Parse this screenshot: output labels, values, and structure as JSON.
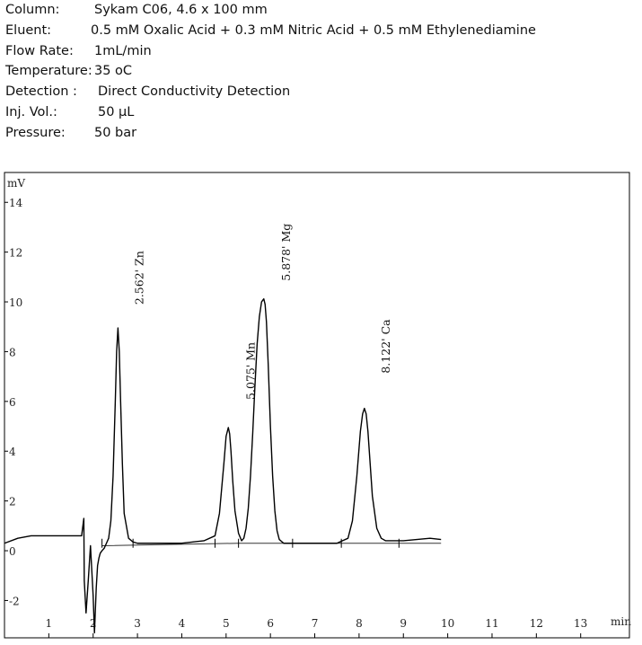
{
  "method": [
    {
      "label": "Column:",
      "value": "Sykam C06, 4.6 x 100 mm"
    },
    {
      "label": "Eluent:",
      "value": "0.5 mM Oxalic Acid + 0.3 mM Nitric Acid + 0.5 mM Ethylenediamine"
    },
    {
      "label": "Flow Rate:",
      "value": "1mL/min"
    },
    {
      "label": "Temperature:",
      "value": "35 oC"
    },
    {
      "label": "Detection :",
      "value": "Direct Conductivity Detection"
    },
    {
      "label": "Inj. Vol.:",
      "value": "50 µL"
    },
    {
      "label": "Pressure:",
      "value": "50 bar"
    }
  ],
  "chart_data": {
    "type": "line",
    "ylabel": "mV",
    "xlabel": "min",
    "xlim": [
      0,
      14.1
    ],
    "ylim": [
      -3.5,
      15.2
    ],
    "x_ticks": [
      1,
      2,
      3,
      4,
      5,
      6,
      7,
      8,
      9,
      10,
      11,
      12,
      13
    ],
    "y_ticks": [
      -2,
      0,
      2,
      4,
      6,
      8,
      10,
      12,
      14
    ],
    "y_tick_labels": [
      "-2",
      "0",
      "2",
      "4",
      "6",
      "8",
      "10",
      "12",
      "14"
    ],
    "series": [
      {
        "x": [
          0.0,
          0.3,
          0.6,
          0.9,
          1.2,
          1.5,
          1.74,
          1.79,
          1.8,
          1.84,
          1.89,
          1.94,
          2.0,
          2.03,
          2.07,
          2.1,
          2.13,
          2.16,
          2.2,
          2.25,
          2.3,
          2.35,
          2.4,
          2.45,
          2.5,
          2.53,
          2.56,
          2.59,
          2.62,
          2.66,
          2.7,
          2.8,
          2.9,
          3.0,
          3.5,
          4.0,
          4.5,
          4.75,
          4.85,
          4.95,
          5.0,
          5.05,
          5.08,
          5.11,
          5.15,
          5.2,
          5.28,
          5.35,
          5.4,
          5.45,
          5.5,
          5.55,
          5.6,
          5.65,
          5.7,
          5.75,
          5.8,
          5.85,
          5.88,
          5.91,
          5.95,
          6.0,
          6.05,
          6.1,
          6.15,
          6.2,
          6.3,
          6.4,
          6.6,
          7.0,
          7.5,
          7.75,
          7.85,
          7.95,
          8.03,
          8.08,
          8.12,
          8.16,
          8.2,
          8.25,
          8.3,
          8.4,
          8.5,
          8.6,
          8.8,
          9.0,
          9.3,
          9.6,
          9.85
        ],
        "y": [
          0.3,
          0.5,
          0.6,
          0.6,
          0.6,
          0.6,
          0.6,
          1.3,
          -1.2,
          -2.5,
          -1.2,
          0.2,
          -1.8,
          -3.3,
          -1.5,
          -0.6,
          -0.3,
          -0.1,
          0.0,
          0.1,
          0.3,
          0.5,
          1.2,
          3.0,
          6.0,
          8.0,
          8.95,
          8.0,
          6.0,
          3.5,
          1.5,
          0.5,
          0.35,
          0.3,
          0.3,
          0.3,
          0.4,
          0.6,
          1.5,
          3.5,
          4.6,
          4.95,
          4.7,
          4.0,
          2.8,
          1.6,
          0.7,
          0.4,
          0.5,
          0.9,
          1.7,
          3.0,
          4.7,
          6.6,
          8.3,
          9.4,
          10.0,
          10.12,
          9.9,
          9.2,
          7.5,
          5.0,
          3.0,
          1.6,
          0.8,
          0.45,
          0.3,
          0.3,
          0.3,
          0.3,
          0.3,
          0.5,
          1.2,
          3.0,
          4.8,
          5.5,
          5.72,
          5.5,
          4.8,
          3.5,
          2.2,
          0.9,
          0.5,
          0.4,
          0.4,
          0.4,
          0.45,
          0.5,
          0.45
        ]
      }
    ],
    "baseline": {
      "x": [
        2.2,
        5.28,
        9.85
      ],
      "y": [
        0.2,
        0.3,
        0.3
      ]
    },
    "peaks": [
      {
        "label": "2.562' Zn",
        "x": 2.562,
        "y": 8.95
      },
      {
        "label": "5.075' Mn",
        "x": 5.075,
        "y": 4.95
      },
      {
        "label": "5.878' Mg",
        "x": 5.878,
        "y": 10.12
      },
      {
        "label": "8.122' Ca",
        "x": 8.122,
        "y": 5.72
      }
    ],
    "integration_markers_x": [
      2.2,
      2.9,
      4.75,
      5.28,
      6.5,
      7.6,
      8.9
    ]
  }
}
